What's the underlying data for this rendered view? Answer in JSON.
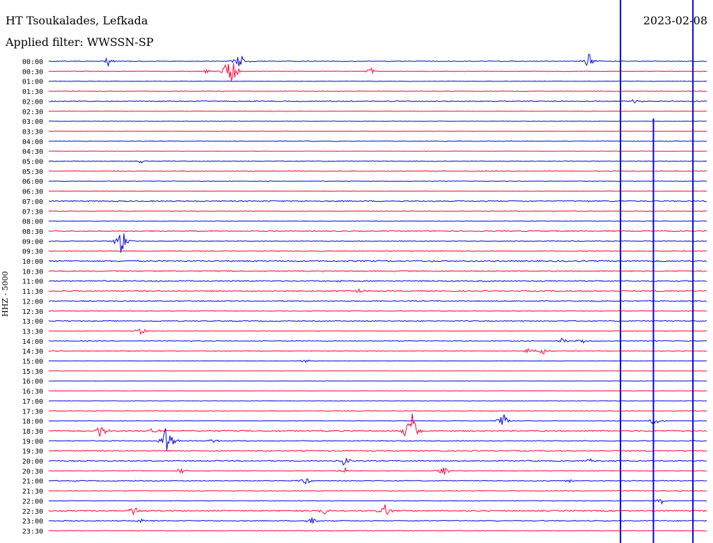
{
  "header": {
    "station": "HT Tsoukalades, Lefkada",
    "filter_label": "Applied filter: WWSSN-SP",
    "date": "2023-02-08"
  },
  "channel_label": "HHZ - 5000",
  "colors": {
    "blue": "#0000dd",
    "red": "#ff0033"
  },
  "chart_data": {
    "type": "line",
    "title": "HT Tsoukalades, Lefkada",
    "subtitle": "Applied filter: WWSSN-SP",
    "ylabel": "HHZ - 5000",
    "row_labels": [
      "00:00",
      "00:30",
      "01:00",
      "01:30",
      "02:00",
      "02:30",
      "03:00",
      "03:30",
      "04:00",
      "04:30",
      "05:00",
      "05:30",
      "06:00",
      "06:30",
      "07:00",
      "07:30",
      "08:00",
      "08:30",
      "09:00",
      "09:30",
      "10:00",
      "10:30",
      "11:00",
      "11:30",
      "12:00",
      "12:30",
      "13:00",
      "13:30",
      "14:00",
      "14:30",
      "15:00",
      "15:30",
      "16:00",
      "16:30",
      "17:00",
      "17:30",
      "18:00",
      "18:30",
      "19:00",
      "19:30",
      "20:00",
      "20:30",
      "21:00",
      "21:30",
      "22:00",
      "22:30",
      "23:00",
      "23:30"
    ],
    "row_colors": [
      "blue",
      "red"
    ],
    "noise_level": [
      0.6,
      0.5,
      0.4,
      0.5,
      0.8,
      0.4,
      0.3,
      0.3,
      0.5,
      0.3,
      0.6,
      0.6,
      0.4,
      0.4,
      1.0,
      0.5,
      0.5,
      0.9,
      0.6,
      0.7,
      1.1,
      0.9,
      1.0,
      0.9,
      0.9,
      0.6,
      0.8,
      0.5,
      0.6,
      0.5,
      0.2,
      0.2,
      0.3,
      0.3,
      0.3,
      0.6,
      0.4,
      1.0,
      0.7,
      0.9,
      0.9,
      0.6,
      0.7,
      0.6,
      0.5,
      1.0,
      0.8,
      0.6
    ],
    "events": [
      {
        "row": 0,
        "t": 0.09,
        "amp": 8
      },
      {
        "row": 0,
        "t": 0.29,
        "amp": 16
      },
      {
        "row": 0,
        "t": 0.82,
        "amp": 12
      },
      {
        "row": 1,
        "t": 0.27,
        "amp": 12
      },
      {
        "row": 1,
        "t": 0.28,
        "amp": 20
      },
      {
        "row": 1,
        "t": 0.49,
        "amp": 6
      },
      {
        "row": 1,
        "t": 0.24,
        "amp": 4
      },
      {
        "row": 4,
        "t": 0.89,
        "amp": 4
      },
      {
        "row": 10,
        "t": 0.14,
        "amp": 3
      },
      {
        "row": 18,
        "t": 0.11,
        "amp": 24
      },
      {
        "row": 22,
        "t": 0.44,
        "amp": 3
      },
      {
        "row": 23,
        "t": 0.47,
        "amp": 3
      },
      {
        "row": 27,
        "t": 0.14,
        "amp": 7
      },
      {
        "row": 28,
        "t": 0.78,
        "amp": 5
      },
      {
        "row": 28,
        "t": 0.81,
        "amp": 5
      },
      {
        "row": 29,
        "t": 0.73,
        "amp": 7
      },
      {
        "row": 29,
        "t": 0.75,
        "amp": 6
      },
      {
        "row": 30,
        "t": 0.39,
        "amp": 4
      },
      {
        "row": 36,
        "t": 0.69,
        "amp": 12
      },
      {
        "row": 36,
        "t": 0.92,
        "amp": 8
      },
      {
        "row": 37,
        "t": 0.08,
        "amp": 14
      },
      {
        "row": 37,
        "t": 0.16,
        "amp": 6
      },
      {
        "row": 37,
        "t": 0.55,
        "amp": 40
      },
      {
        "row": 38,
        "t": 0.18,
        "amp": 30
      },
      {
        "row": 38,
        "t": 0.25,
        "amp": 4
      },
      {
        "row": 40,
        "t": 0.45,
        "amp": 10
      },
      {
        "row": 40,
        "t": 0.82,
        "amp": 4
      },
      {
        "row": 41,
        "t": 0.45,
        "amp": 5
      },
      {
        "row": 41,
        "t": 0.6,
        "amp": 9
      },
      {
        "row": 41,
        "t": 0.2,
        "amp": 5
      },
      {
        "row": 42,
        "t": 0.39,
        "amp": 6
      },
      {
        "row": 42,
        "t": 0.79,
        "amp": 3
      },
      {
        "row": 44,
        "t": 0.93,
        "amp": 6
      },
      {
        "row": 45,
        "t": 0.13,
        "amp": 9
      },
      {
        "row": 45,
        "t": 0.42,
        "amp": 7
      },
      {
        "row": 45,
        "t": 0.51,
        "amp": 12
      },
      {
        "row": 46,
        "t": 0.14,
        "amp": 3
      },
      {
        "row": 46,
        "t": 0.4,
        "amp": 6
      }
    ],
    "vertical_spikes": [
      {
        "t": 0.868,
        "from_row": 0,
        "to_row": 47
      },
      {
        "t": 0.918,
        "from_row": 6,
        "to_row": 47
      },
      {
        "t": 0.978,
        "from_row": 0,
        "to_row": 47
      }
    ]
  }
}
